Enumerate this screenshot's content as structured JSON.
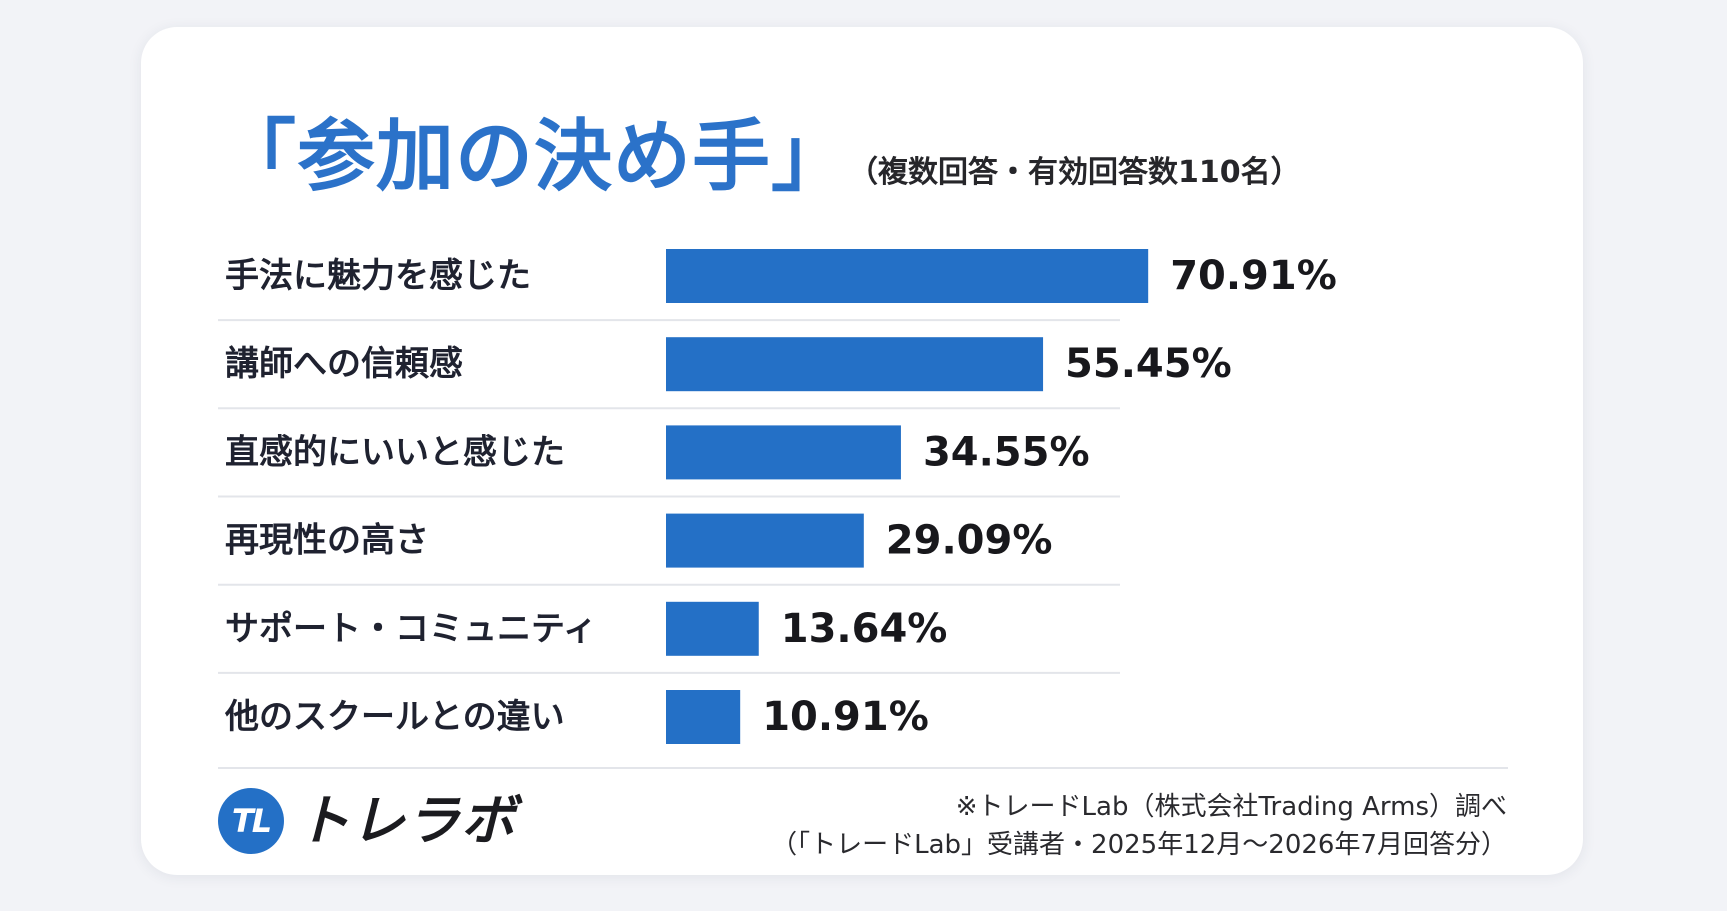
{
  "title": "「参加の決め手」",
  "subtitle": "（複数回答・有効回答数110名）",
  "chart_data": {
    "type": "bar",
    "orientation": "horizontal",
    "categories": [
      "手法に魅力を感じた",
      "講師への信頼感",
      "直感的にいいと感じた",
      "再現性の高さ",
      "サポート・コミュニティ",
      "他のスクールとの違い"
    ],
    "values": [
      70.91,
      55.45,
      34.55,
      29.09,
      13.64,
      10.91
    ],
    "value_labels": [
      "70.91%",
      "55.45%",
      "34.55%",
      "29.09%",
      "13.64%",
      "10.91%"
    ],
    "unit": "%",
    "xlim": [
      0,
      100
    ],
    "grid": false,
    "legend": "none",
    "bar_color": "#2470c6"
  },
  "logo": {
    "mark": "TL",
    "text": "トレラボ",
    "color": "#2470c6"
  },
  "footnote": {
    "line1": "※トレードLab（株式会社Trading Arms）調べ",
    "line2": "（「トレードLab」受講者・2025年12月〜2026年7月回答分）"
  }
}
